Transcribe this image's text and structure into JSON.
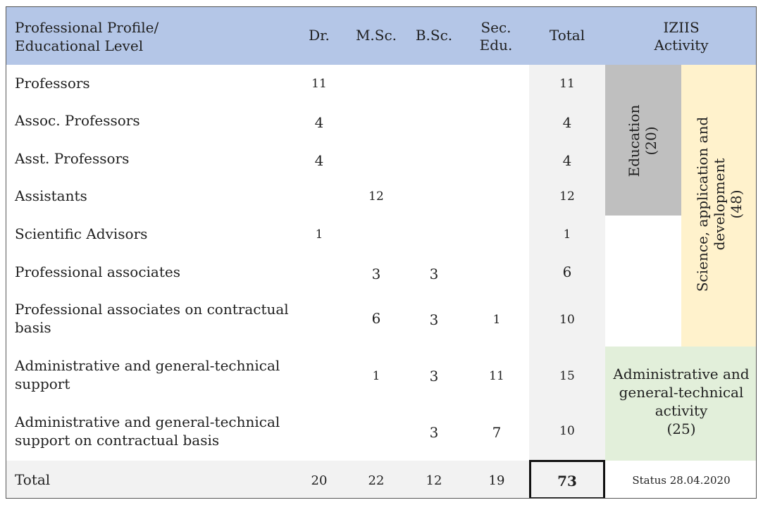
{
  "header": {
    "profile_label_line1": "Professional Profile/",
    "profile_label_line2": "Educational Level",
    "dr": "Dr.",
    "msc": "M.Sc.",
    "bsc": "B.Sc.",
    "sec_line1": "Sec.",
    "sec_line2": "Edu.",
    "total": "Total",
    "activity_line1": "IZIIS",
    "activity_line2": "Activity"
  },
  "rows": [
    {
      "label_line1": "Professors",
      "label_line2": "",
      "dr": "11",
      "msc": "",
      "bsc": "",
      "sec": "",
      "total": "11"
    },
    {
      "label_line1": "Assoc. Professors",
      "label_line2": "",
      "dr": "4",
      "msc": "",
      "bsc": "",
      "sec": "",
      "total": "4"
    },
    {
      "label_line1": "Asst. Professors",
      "label_line2": "",
      "dr": "4",
      "msc": "",
      "bsc": "",
      "sec": "",
      "total": "4"
    },
    {
      "label_line1": "Assistants",
      "label_line2": "",
      "dr": "",
      "msc": "12",
      "bsc": "",
      "sec": "",
      "total": "12"
    },
    {
      "label_line1": "Scientific Advisors",
      "label_line2": "",
      "dr": "1",
      "msc": "",
      "bsc": "",
      "sec": "",
      "total": "1"
    },
    {
      "label_line1": "Professional associates",
      "label_line2": "",
      "dr": "",
      "msc": "3",
      "bsc": "3",
      "sec": "",
      "total": "6"
    },
    {
      "label_line1": "Professional associates on contractual",
      "label_line2": "basis",
      "dr": "",
      "msc": "6",
      "bsc": "3",
      "sec": "1",
      "total": "10"
    },
    {
      "label_line1": "Administrative and general-technical",
      "label_line2": "support",
      "dr": "",
      "msc": "1",
      "bsc": "3",
      "sec": "11",
      "total": "15"
    },
    {
      "label_line1": "Administrative and general-technical",
      "label_line2": "support on contractual basis",
      "dr": "",
      "msc": "",
      "bsc": "3",
      "sec": "7",
      "total": "10"
    }
  ],
  "totals": {
    "label": "Total",
    "dr": "20",
    "msc": "22",
    "bsc": "12",
    "sec": "19",
    "total": "73",
    "status": "Status 28.04.2020"
  },
  "activities": {
    "education_line1": "Education",
    "education_line2": "(20)",
    "science_line1": "Science, application and",
    "science_line2": "development",
    "science_line3": "(48)",
    "admin_line1": "Administrative and",
    "admin_line2": "general-technical",
    "admin_line3": "activity",
    "admin_line4": "(25)"
  },
  "colors": {
    "header_bg": "#b4c6e7",
    "total_column_bg": "#f2f2f2",
    "education_bg": "#bfbfbf",
    "science_bg": "#fff2cc",
    "admin_bg": "#e2efda"
  }
}
